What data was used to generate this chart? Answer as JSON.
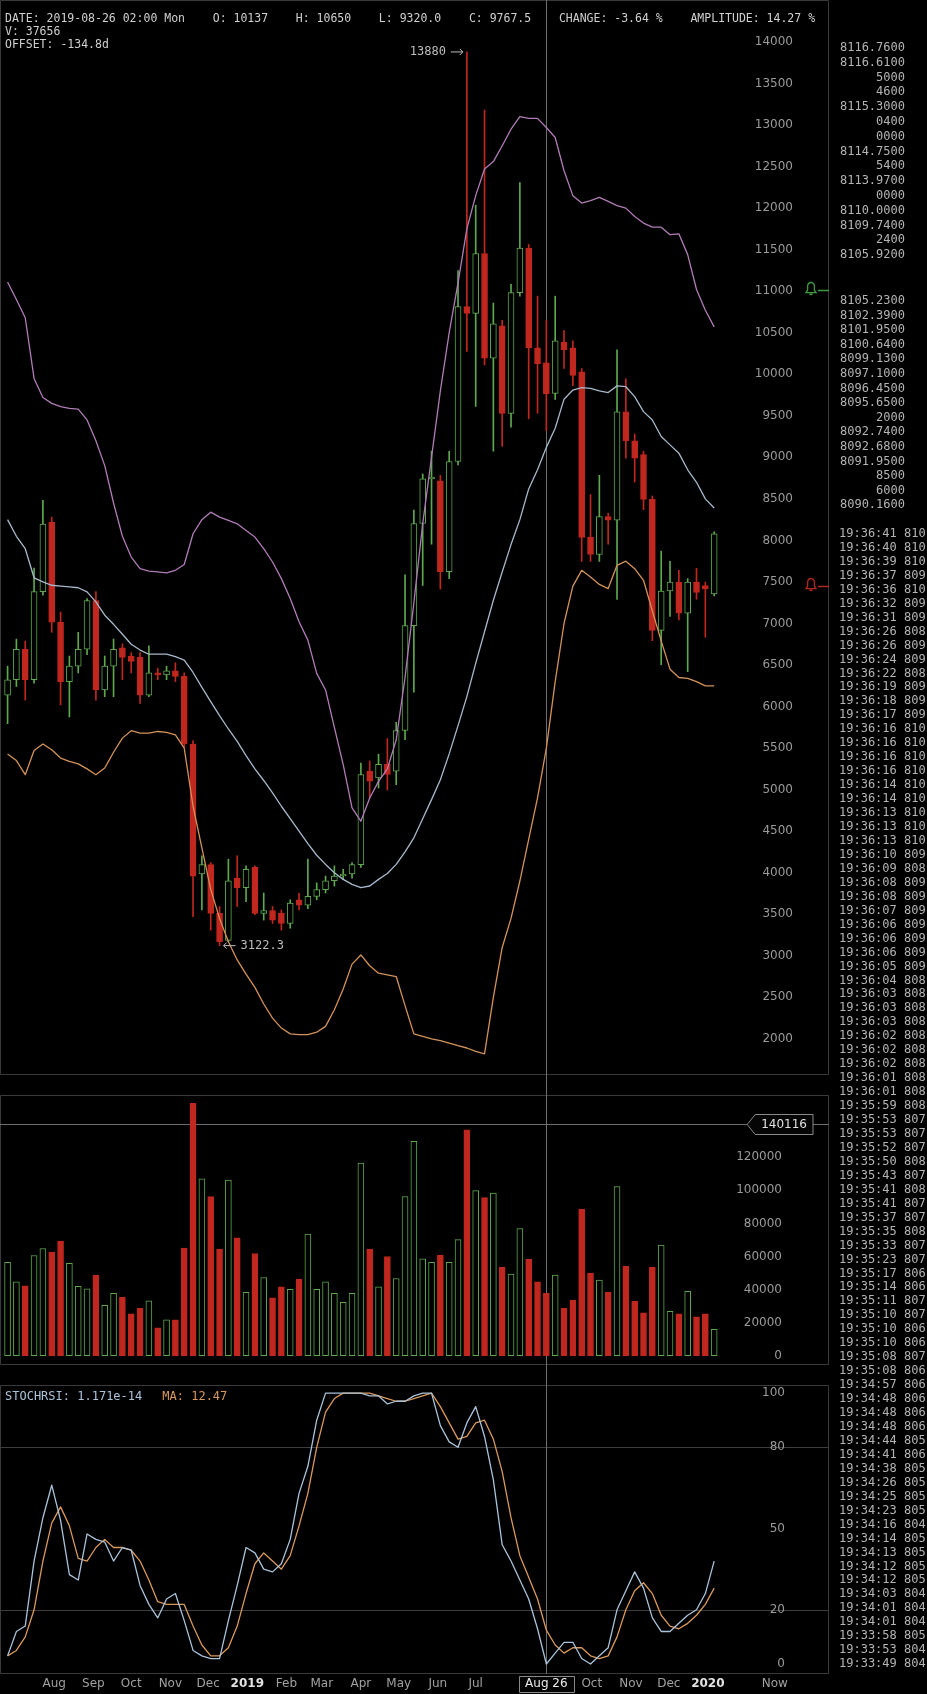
{
  "chart_data": [
    {
      "type": "candlestick",
      "annotations": [
        "DATE: 2019-08-26 02:00 Mon    O: 10137    H: 10650    L: 9320.0    C: 9767.5    CHANGE: -3.64 %    AMPLITUDE: 14.27 %",
        "V: 37656",
        "OFFSET: -134.8d",
        {
          "text": "13880",
          "x": "2019-06-24",
          "y": 13880
        },
        {
          "text": "3122.3",
          "x": "2018-12-10",
          "y": 3122.3
        }
      ],
      "x": [
        "2018-06-25",
        "2018-07-02",
        "2018-07-09",
        "2018-07-16",
        "2018-07-23",
        "2018-07-30",
        "2018-08-06",
        "2018-08-13",
        "2018-08-20",
        "2018-08-27",
        "2018-09-03",
        "2018-09-10",
        "2018-09-17",
        "2018-09-24",
        "2018-10-01",
        "2018-10-08",
        "2018-10-15",
        "2018-10-22",
        "2018-10-29",
        "2018-11-05",
        "2018-11-12",
        "2018-11-19",
        "2018-11-26",
        "2018-12-03",
        "2018-12-10",
        "2018-12-17",
        "2018-12-24",
        "2018-12-31",
        "2019-01-07",
        "2019-01-14",
        "2019-01-21",
        "2019-01-28",
        "2019-02-04",
        "2019-02-11",
        "2019-02-18",
        "2019-02-25",
        "2019-03-04",
        "2019-03-11",
        "2019-03-18",
        "2019-03-25",
        "2019-04-01",
        "2019-04-08",
        "2019-04-15",
        "2019-04-22",
        "2019-04-29",
        "2019-05-06",
        "2019-05-13",
        "2019-05-20",
        "2019-05-27",
        "2019-06-03",
        "2019-06-10",
        "2019-06-17",
        "2019-06-24",
        "2019-07-01",
        "2019-07-08",
        "2019-07-15",
        "2019-07-22",
        "2019-07-29",
        "2019-08-05",
        "2019-08-12",
        "2019-08-19",
        "2019-08-26",
        "2019-09-02",
        "2019-09-09",
        "2019-09-16",
        "2019-09-23",
        "2019-09-30",
        "2019-10-07",
        "2019-10-14",
        "2019-10-21",
        "2019-10-28",
        "2019-11-04",
        "2019-11-11",
        "2019-11-18",
        "2019-11-25",
        "2019-12-02",
        "2019-12-09",
        "2019-12-16",
        "2019-12-23",
        "2019-12-30",
        "2020-01-06"
      ],
      "ohlc": [
        [
          6136,
          6486,
          5793,
          6323
        ],
        [
          6323,
          6812,
          6242,
          6690
        ],
        [
          6690,
          6788,
          6078,
          6323
        ],
        [
          6323,
          7668,
          6282,
          7383
        ],
        [
          7383,
          8483,
          7342,
          8198
        ],
        [
          8222,
          8279,
          6894,
          7016
        ],
        [
          7016,
          7138,
          6021,
          6299
        ],
        [
          6299,
          6608,
          5875,
          6486
        ],
        [
          6486,
          6894,
          6405,
          6690
        ],
        [
          6690,
          7301,
          6625,
          7277
        ],
        [
          7277,
          7383,
          6078,
          6201
        ],
        [
          6201,
          6608,
          6119,
          6486
        ],
        [
          6486,
          6812,
          6119,
          6690
        ],
        [
          6706,
          6755,
          6323,
          6592
        ],
        [
          6608,
          6649,
          6405,
          6543
        ],
        [
          6592,
          6649,
          6038,
          6136
        ],
        [
          6136,
          6731,
          6119,
          6405
        ],
        [
          6405,
          6462,
          6323,
          6380
        ],
        [
          6380,
          6486,
          6323,
          6429
        ],
        [
          6429,
          6527,
          6299,
          6364
        ],
        [
          6364,
          6405,
          5508,
          5549
        ],
        [
          5549,
          5590,
          3470,
          3959
        ],
        [
          3984,
          4204,
          3552,
          4098
        ],
        [
          4098,
          4122,
          3308,
          3511
        ],
        [
          3511,
          3593,
          3122.3,
          3169
        ],
        [
          3185,
          4163,
          3169,
          3903
        ],
        [
          3935,
          4204,
          3593,
          3821
        ],
        [
          3821,
          4082,
          3650,
          4041
        ],
        [
          4065,
          4082,
          3495,
          3511
        ],
        [
          3511,
          3756,
          3430,
          3545
        ],
        [
          3545,
          3593,
          3389,
          3430
        ],
        [
          3511,
          3552,
          3308,
          3389
        ],
        [
          3389,
          3674,
          3332,
          3633
        ],
        [
          3674,
          3756,
          3552,
          3609
        ],
        [
          3609,
          4163,
          3568,
          3715
        ],
        [
          3715,
          3878,
          3674,
          3797
        ],
        [
          3797,
          3960,
          3756,
          3903
        ],
        [
          3903,
          4082,
          3838,
          3960
        ],
        [
          3960,
          4041,
          3919,
          3984
        ],
        [
          3984,
          4122,
          3935,
          4098
        ],
        [
          4098,
          5321,
          4065,
          5182
        ],
        [
          5223,
          5345,
          4897,
          5101
        ],
        [
          5142,
          5427,
          5019,
          5304
        ],
        [
          5304,
          5614,
          4995,
          5182
        ],
        [
          5223,
          5810,
          5060,
          5712
        ],
        [
          5712,
          7586,
          5600,
          6975
        ],
        [
          6975,
          8365,
          6172,
          8203
        ],
        [
          8203,
          8800,
          7457,
          8742
        ],
        [
          8742,
          9074,
          7954,
          8760
        ],
        [
          8717,
          8783,
          7415,
          7623
        ],
        [
          7623,
          9074,
          7540,
          8950
        ],
        [
          8950,
          11247,
          8908,
          10815
        ],
        [
          10815,
          13880,
          10276,
          10732
        ],
        [
          10732,
          12035,
          9613,
          11454
        ],
        [
          11454,
          13179,
          10111,
          10194
        ],
        [
          10194,
          10857,
          9074,
          10608
        ],
        [
          10583,
          10650,
          9132,
          9530
        ],
        [
          9530,
          11081,
          9364,
          10982
        ],
        [
          10982,
          12308,
          10940,
          11520
        ],
        [
          11520,
          11562,
          9464,
          10318
        ],
        [
          10318,
          10940,
          9530,
          10127
        ],
        [
          10137,
          10650,
          9320,
          9767.5
        ],
        [
          9770,
          10940,
          9696,
          10401
        ],
        [
          10384,
          10525,
          10069,
          10293
        ],
        [
          10318,
          10401,
          9862,
          9986
        ],
        [
          10028,
          10069,
          7747,
          8037
        ],
        [
          8037,
          8552,
          7747,
          7830
        ],
        [
          7830,
          8784,
          7747,
          8286
        ],
        [
          8286,
          8328,
          7954,
          8245
        ],
        [
          8245,
          10293,
          7291,
          9547
        ],
        [
          9547,
          9945,
          8991,
          9198
        ],
        [
          9198,
          9281,
          8701,
          8991
        ],
        [
          9032,
          9074,
          8369,
          8493
        ],
        [
          8493,
          8535,
          6793,
          6918
        ],
        [
          6918,
          7871,
          6503,
          7391
        ],
        [
          7391,
          7747,
          7084,
          7498
        ],
        [
          7498,
          7639,
          7042,
          7125
        ],
        [
          7125,
          7540,
          6420,
          7498
        ],
        [
          7498,
          7664,
          7291,
          7374
        ],
        [
          7457,
          7498,
          6835,
          7415
        ],
        [
          7357,
          8104,
          7332,
          8079
        ]
      ],
      "colors": [
        "#5ea84e",
        "#5ea84e",
        "#c0271e",
        "#5ea84e",
        "#5ea84e",
        "#c0271e",
        "#c0271e",
        "#5ea84e",
        "#5ea84e",
        "#5ea84e",
        "#c0271e",
        "#5ea84e",
        "#5ea84e",
        "#c0271e",
        "#c0271e",
        "#c0271e",
        "#5ea84e",
        "#c0271e",
        "#5ea84e",
        "#c0271e",
        "#c0271e",
        "#c0271e",
        "#5ea84e",
        "#c0271e",
        "#c0271e",
        "#5ea84e",
        "#c0271e",
        "#5ea84e",
        "#c0271e",
        "#5ea84e",
        "#c0271e",
        "#c0271e",
        "#5ea84e",
        "#c0271e",
        "#5ea84e",
        "#5ea84e",
        "#5ea84e",
        "#5ea84e",
        "#5ea84e",
        "#5ea84e",
        "#5ea84e",
        "#c0271e",
        "#5ea84e",
        "#c0271e",
        "#5ea84e",
        "#5ea84e",
        "#5ea84e",
        "#5ea84e",
        "#5ea84e",
        "#c0271e",
        "#5ea84e",
        "#5ea84e",
        "#c0271e",
        "#5ea84e",
        "#c0271e",
        "#5ea84e",
        "#c0271e",
        "#5ea84e",
        "#5ea84e",
        "#c0271e",
        "#c0271e",
        "#c0271e",
        "#5ea84e",
        "#c0271e",
        "#c0271e",
        "#c0271e",
        "#c0271e",
        "#5ea84e",
        "#c0271e",
        "#5ea84e",
        "#c0271e",
        "#c0271e",
        "#c0271e",
        "#c0271e",
        "#5ea84e",
        "#5ea84e",
        "#c0271e",
        "#5ea84e",
        "#c0271e",
        "#c0271e",
        "#5ea84e"
      ],
      "series": [
        {
          "type": "line",
          "color": "#b07cb6",
          "values": [
            11110,
            10900,
            10680,
            9950,
            9720,
            9650,
            9610,
            9590,
            9580,
            9450,
            9200,
            8900,
            8450,
            8050,
            7800,
            7660,
            7630,
            7620,
            7610,
            7640,
            7710,
            8080,
            8250,
            8340,
            8280,
            8240,
            8200,
            8120,
            8040,
            7900,
            7740,
            7540,
            7300,
            7020,
            6800,
            6400,
            6200,
            5750,
            5300,
            4780,
            4620,
            4900,
            5100,
            5250,
            5600,
            6350,
            7250,
            8200,
            9000,
            9800,
            10500,
            11100,
            11750,
            12150,
            12470,
            12560,
            12750,
            12950,
            13100,
            13080,
            13080,
            12970,
            12850,
            12450,
            12150,
            12060,
            12090,
            12130,
            12080,
            12030,
            12000,
            11900,
            11820,
            11770,
            11770,
            11680,
            11690,
            11440,
            11020,
            10770,
            10570
          ]
        },
        {
          "type": "line",
          "color": "#a7b9cc",
          "values": [
            8250,
            8050,
            7900,
            7550,
            7500,
            7460,
            7450,
            7440,
            7430,
            7380,
            7260,
            7100,
            6990,
            6870,
            6750,
            6680,
            6630,
            6630,
            6630,
            6600,
            6560,
            6410,
            6230,
            6060,
            5890,
            5730,
            5580,
            5410,
            5250,
            5110,
            4960,
            4800,
            4650,
            4500,
            4350,
            4210,
            4100,
            4000,
            3920,
            3860,
            3820,
            3840,
            3920,
            3990,
            4100,
            4250,
            4420,
            4650,
            4880,
            5120,
            5430,
            5770,
            6120,
            6520,
            6900,
            7280,
            7620,
            7950,
            8250,
            8620,
            8850,
            9120,
            9350,
            9700,
            9810,
            9840,
            9830,
            9800,
            9780,
            9860,
            9850,
            9730,
            9550,
            9450,
            9250,
            9150,
            9050,
            8850,
            8700,
            8500,
            8390
          ]
        },
        {
          "type": "line",
          "color": "#d2925a",
          "values": [
            5430,
            5350,
            5180,
            5470,
            5550,
            5480,
            5380,
            5340,
            5310,
            5250,
            5180,
            5260,
            5450,
            5620,
            5710,
            5680,
            5680,
            5700,
            5690,
            5660,
            5500,
            4800,
            4300,
            3800,
            3450,
            3170,
            2950,
            2780,
            2620,
            2420,
            2250,
            2130,
            2060,
            2050,
            2050,
            2080,
            2150,
            2350,
            2600,
            2900,
            3010,
            2880,
            2790,
            2770,
            2750,
            2400,
            2060,
            2030,
            2000,
            1980,
            1950,
            1920,
            1890,
            1850,
            1820,
            2500,
            3100,
            3450,
            3900,
            4400,
            4900,
            5500,
            6300,
            7000,
            7450,
            7640,
            7560,
            7470,
            7420,
            7700,
            7750,
            7660,
            7520,
            7150,
            6790,
            6450,
            6350,
            6340,
            6300,
            6250,
            6250
          ]
        }
      ],
      "xlim": [
        "2018-06-19",
        "2020-04-06"
      ],
      "ylim": [
        1565,
        14505
      ],
      "yticks": [
        2000,
        2500,
        3000,
        3500,
        4000,
        4500,
        5000,
        5500,
        6000,
        6500,
        7000,
        7500,
        8000,
        8500,
        9000,
        9500,
        10000,
        10500,
        11000,
        11500,
        12000,
        12500,
        13000,
        13500,
        14000
      ],
      "tick_labels": "y",
      "ref_lines": [
        {
          "axis": "x",
          "value": "2019-08-26",
          "color": "#6e6e6e"
        }
      ]
    },
    {
      "type": "bar",
      "x": [
        "2018-06-25",
        "2018-07-02",
        "2018-07-09",
        "2018-07-16",
        "2018-07-23",
        "2018-07-30",
        "2018-08-06",
        "2018-08-13",
        "2018-08-20",
        "2018-08-27",
        "2018-09-03",
        "2018-09-10",
        "2018-09-17",
        "2018-09-24",
        "2018-10-01",
        "2018-10-08",
        "2018-10-15",
        "2018-10-22",
        "2018-10-29",
        "2018-11-05",
        "2018-11-12",
        "2018-11-19",
        "2018-11-26",
        "2018-12-03",
        "2018-12-10",
        "2018-12-17",
        "2018-12-24",
        "2018-12-31",
        "2019-01-07",
        "2019-01-14",
        "2019-01-21",
        "2019-01-28",
        "2019-02-04",
        "2019-02-11",
        "2019-02-18",
        "2019-02-25",
        "2019-03-04",
        "2019-03-11",
        "2019-03-18",
        "2019-03-25",
        "2019-04-01",
        "2019-04-08",
        "2019-04-15",
        "2019-04-22",
        "2019-04-29",
        "2019-05-06",
        "2019-05-13",
        "2019-05-20",
        "2019-05-27",
        "2019-06-03",
        "2019-06-10",
        "2019-06-17",
        "2019-06-24",
        "2019-07-01",
        "2019-07-08",
        "2019-07-15",
        "2019-07-22",
        "2019-07-29",
        "2019-08-05",
        "2019-08-12",
        "2019-08-19",
        "2019-08-26",
        "2019-09-02",
        "2019-09-09",
        "2019-09-16",
        "2019-09-23",
        "2019-09-30",
        "2019-10-07",
        "2019-10-14",
        "2019-10-21",
        "2019-10-28",
        "2019-11-04",
        "2019-11-11",
        "2019-11-18",
        "2019-11-25",
        "2019-12-02",
        "2019-12-09",
        "2019-12-16",
        "2019-12-23",
        "2019-12-30",
        "2020-01-06"
      ],
      "values": [
        56400,
        44600,
        42200,
        60600,
        64800,
        62700,
        69300,
        55800,
        41900,
        40400,
        48800,
        30500,
        37700,
        35300,
        25300,
        28600,
        33200,
        16900,
        21700,
        21700,
        65100,
        152600,
        107000,
        96200,
        64500,
        106100,
        71200,
        38300,
        61800,
        47300,
        35000,
        41600,
        40100,
        46400,
        73600,
        40100,
        44600,
        37700,
        32300,
        37700,
        116400,
        64500,
        41600,
        60000,
        46700,
        96200,
        129600,
        58500,
        56400,
        60900,
        56400,
        70200,
        136600,
        99800,
        95600,
        98300,
        53400,
        49400,
        76900,
        58200,
        44600,
        37656,
        48800,
        28600,
        33500,
        88600,
        50000,
        45800,
        38300,
        102200,
        54000,
        32900,
        25900,
        53400,
        66900,
        26800,
        25300,
        38900,
        23500,
        25300,
        16000
      ],
      "colors": [
        "#5ea84e",
        "#5ea84e",
        "#c0271e",
        "#5ea84e",
        "#5ea84e",
        "#c0271e",
        "#c0271e",
        "#5ea84e",
        "#5ea84e",
        "#5ea84e",
        "#c0271e",
        "#5ea84e",
        "#5ea84e",
        "#c0271e",
        "#c0271e",
        "#c0271e",
        "#5ea84e",
        "#c0271e",
        "#5ea84e",
        "#c0271e",
        "#c0271e",
        "#c0271e",
        "#5ea84e",
        "#c0271e",
        "#c0271e",
        "#5ea84e",
        "#c0271e",
        "#5ea84e",
        "#c0271e",
        "#5ea84e",
        "#c0271e",
        "#c0271e",
        "#5ea84e",
        "#c0271e",
        "#5ea84e",
        "#5ea84e",
        "#5ea84e",
        "#5ea84e",
        "#5ea84e",
        "#5ea84e",
        "#5ea84e",
        "#c0271e",
        "#5ea84e",
        "#c0271e",
        "#5ea84e",
        "#5ea84e",
        "#5ea84e",
        "#5ea84e",
        "#5ea84e",
        "#c0271e",
        "#5ea84e",
        "#5ea84e",
        "#c0271e",
        "#5ea84e",
        "#c0271e",
        "#5ea84e",
        "#c0271e",
        "#5ea84e",
        "#5ea84e",
        "#c0271e",
        "#c0271e",
        "#c0271e",
        "#5ea84e",
        "#c0271e",
        "#c0271e",
        "#c0271e",
        "#c0271e",
        "#5ea84e",
        "#c0271e",
        "#5ea84e",
        "#c0271e",
        "#c0271e",
        "#c0271e",
        "#c0271e",
        "#5ea84e",
        "#5ea84e",
        "#c0271e",
        "#5ea84e",
        "#c0271e",
        "#c0271e",
        "#5ea84e"
      ],
      "xlim": [
        "2018-06-19",
        "2020-04-06"
      ],
      "ylim": [
        -5600,
        157600
      ],
      "yticks": [
        0,
        20000,
        40000,
        60000,
        80000,
        100000,
        120000
      ],
      "tick_labels": "y",
      "ref_lines": [
        {
          "axis": "x",
          "value": "2019-08-26",
          "color": "#6e6e6e"
        },
        {
          "axis": "y",
          "value": 140116,
          "label": "140116",
          "color": "#6e6e6e"
        }
      ]
    },
    {
      "type": "line",
      "x": [
        "2018-06-25",
        "2018-07-02",
        "2018-07-09",
        "2018-07-16",
        "2018-07-23",
        "2018-07-30",
        "2018-08-06",
        "2018-08-13",
        "2018-08-20",
        "2018-08-27",
        "2018-09-03",
        "2018-09-10",
        "2018-09-17",
        "2018-09-24",
        "2018-10-01",
        "2018-10-08",
        "2018-10-15",
        "2018-10-22",
        "2018-10-29",
        "2018-11-05",
        "2018-11-12",
        "2018-11-19",
        "2018-11-26",
        "2018-12-03",
        "2018-12-10",
        "2018-12-17",
        "2018-12-24",
        "2018-12-31",
        "2019-01-07",
        "2019-01-14",
        "2019-01-21",
        "2019-01-28",
        "2019-02-04",
        "2019-02-11",
        "2019-02-18",
        "2019-02-25",
        "2019-03-04",
        "2019-03-11",
        "2019-03-18",
        "2019-03-25",
        "2019-04-01",
        "2019-04-08",
        "2019-04-15",
        "2019-04-22",
        "2019-04-29",
        "2019-05-06",
        "2019-05-13",
        "2019-05-20",
        "2019-05-27",
        "2019-06-03",
        "2019-06-10",
        "2019-06-17",
        "2019-06-24",
        "2019-07-01",
        "2019-07-08",
        "2019-07-15",
        "2019-07-22",
        "2019-07-29",
        "2019-08-05",
        "2019-08-12",
        "2019-08-19",
        "2019-08-26",
        "2019-09-02",
        "2019-09-09",
        "2019-09-16",
        "2019-09-23",
        "2019-09-30",
        "2019-10-07",
        "2019-10-14",
        "2019-10-21",
        "2019-10-28",
        "2019-11-04",
        "2019-11-11",
        "2019-11-18",
        "2019-11-25",
        "2019-12-02",
        "2019-12-09",
        "2019-12-16",
        "2019-12-23",
        "2019-12-30",
        "2020-01-06"
      ],
      "series": [
        {
          "name": "STOCHRSI: 1.171e-14",
          "color": "#a9c3da",
          "values": [
            3,
            12,
            14,
            38,
            54,
            66,
            53,
            33,
            31,
            48,
            46,
            45,
            38,
            43,
            42,
            29,
            22,
            17,
            24,
            26,
            16,
            5,
            3,
            2,
            2,
            16,
            29,
            43,
            41,
            35,
            34,
            37,
            46,
            63,
            73,
            90,
            100,
            100,
            100,
            100,
            100,
            99,
            99,
            96,
            97,
            97,
            99,
            100,
            100,
            88,
            82,
            80,
            89,
            95,
            84,
            68,
            44,
            38,
            31,
            24,
            13,
            0,
            4,
            8,
            8,
            2,
            0,
            3,
            6,
            20,
            27,
            34,
            28,
            17,
            12,
            12,
            15,
            18,
            20,
            26,
            38
          ]
        },
        {
          "name": "MA: 12.47",
          "color": "#d9995b",
          "values": [
            3,
            5,
            10,
            20,
            38,
            52,
            58,
            51,
            39,
            38,
            43,
            46,
            43,
            43,
            42,
            38,
            31,
            23,
            22,
            22,
            22,
            14,
            7,
            3,
            3,
            6,
            14,
            26,
            37,
            41,
            38,
            35,
            40,
            51,
            63,
            80,
            93,
            98,
            100,
            100,
            100,
            100,
            99,
            98,
            97,
            97,
            98,
            99,
            100,
            95,
            89,
            83,
            84,
            89,
            90,
            83,
            71,
            54,
            40,
            32,
            24,
            12.47,
            7,
            4,
            6,
            6,
            3,
            2,
            3,
            10,
            20,
            27,
            30,
            26,
            18,
            14,
            13,
            15,
            18,
            22,
            28
          ]
        }
      ],
      "xlim": [
        "2018-06-19",
        "2020-04-06"
      ],
      "ylim": [
        -3.7,
        103
      ],
      "yticks": [
        0,
        20,
        50,
        80,
        100
      ],
      "xticks": [
        {
          "value": "2018-08-01",
          "label": "Aug"
        },
        {
          "value": "2018-09-01",
          "label": "Sep"
        },
        {
          "value": "2018-10-01",
          "label": "Oct"
        },
        {
          "value": "2018-11-01",
          "label": "Nov"
        },
        {
          "value": "2018-12-01",
          "label": "Dec"
        },
        {
          "value": "2019-01-01",
          "label": "2019"
        },
        {
          "value": "2019-02-01",
          "label": "Feb"
        },
        {
          "value": "2019-03-01",
          "label": "Mar"
        },
        {
          "value": "2019-04-01",
          "label": "Apr"
        },
        {
          "value": "2019-05-01",
          "label": "May"
        },
        {
          "value": "2019-06-01",
          "label": "Jun"
        },
        {
          "value": "2019-07-01",
          "label": "Jul"
        },
        {
          "value": "2019-08-26",
          "label": "Aug 26"
        },
        {
          "value": "2019-10-01",
          "label": "Oct"
        },
        {
          "value": "2019-11-01",
          "label": "Nov"
        },
        {
          "value": "2019-12-01",
          "label": "Dec"
        },
        {
          "value": "2020-01-01",
          "label": "2020"
        },
        {
          "value": "2020-02-23",
          "label": "Now"
        }
      ],
      "legend": "top left",
      "ref_lines": [
        {
          "axis": "y",
          "value": 80,
          "color": "#3d3d3d"
        },
        {
          "axis": "y",
          "value": 20,
          "color": "#3d3d3d"
        },
        {
          "axis": "x",
          "value": "2019-08-26",
          "color": "#6e6e6e"
        }
      ]
    },
    {
      "type": "other",
      "annotations": [
        "8116.7600",
        "8116.6100",
        "5000",
        "4600",
        "8115.3000",
        "0400",
        "0000",
        "8114.7500",
        "5400",
        "8113.9700",
        "0000",
        "8110.0000",
        "8109.7400",
        "2400",
        "8105.9200"
      ]
    },
    {
      "type": "other",
      "annotations": [
        "8105.2300",
        "8102.3900",
        "8101.9500",
        "8100.6400",
        "8099.1300",
        "8097.1000",
        "8096.4500",
        "8095.6500",
        "2000",
        "8092.7400",
        "8092.6800",
        "8091.9500",
        "8500",
        "6000",
        "8090.1600"
      ]
    },
    {
      "type": "other",
      "annotations": [
        "19:36:41 810",
        "19:36:40 810",
        "19:36:39 810",
        "19:36:37 809",
        "19:36:36 810",
        "19:36:32 809",
        "19:36:31 809",
        "19:36:26 808",
        "19:36:26 809",
        "19:36:24 809",
        "19:36:22 808",
        "19:36:19 809",
        "19:36:18 809",
        "19:36:17 809",
        "19:36:16 810",
        "19:36:16 810",
        "19:36:16 810",
        "19:36:16 810",
        "19:36:14 810",
        "19:36:14 810",
        "19:36:13 810",
        "19:36:13 810",
        "19:36:13 810",
        "19:36:10 809",
        "19:36:09 808",
        "19:36:08 809",
        "19:36:08 809",
        "19:36:07 809",
        "19:36:06 809",
        "19:36:06 809",
        "19:36:06 809",
        "19:36:05 809",
        "19:36:04 808",
        "19:36:03 808",
        "19:36:03 808",
        "19:36:03 808",
        "19:36:02 808",
        "19:36:02 808",
        "19:36:02 808",
        "19:36:01 808",
        "19:36:01 808",
        "19:35:59 808",
        "19:35:53 807",
        "19:35:53 807",
        "19:35:52 807",
        "19:35:50 808",
        "19:35:43 807",
        "19:35:41 808",
        "19:35:41 807",
        "19:35:37 807",
        "19:35:35 808",
        "19:35:33 807",
        "19:35:23 807",
        "19:35:17 806",
        "19:35:14 806",
        "19:35:11 807",
        "19:35:10 807",
        "19:35:10 806",
        "19:35:10 806",
        "19:35:08 807",
        "19:35:08 806",
        "19:34:57 806",
        "19:34:48 806",
        "19:34:48 806",
        "19:34:48 806",
        "19:34:44 805",
        "19:34:41 806",
        "19:34:38 805",
        "19:34:26 805",
        "19:34:25 805",
        "19:34:23 805",
        "19:34:16 804",
        "19:34:14 805",
        "19:34:13 805",
        "19:34:12 805",
        "19:34:12 805",
        "19:34:03 804",
        "19:34:01 804",
        "19:34:01 804",
        "19:33:58 805",
        "19:33:53 804",
        "19:33:49 804"
      ]
    }
  ]
}
